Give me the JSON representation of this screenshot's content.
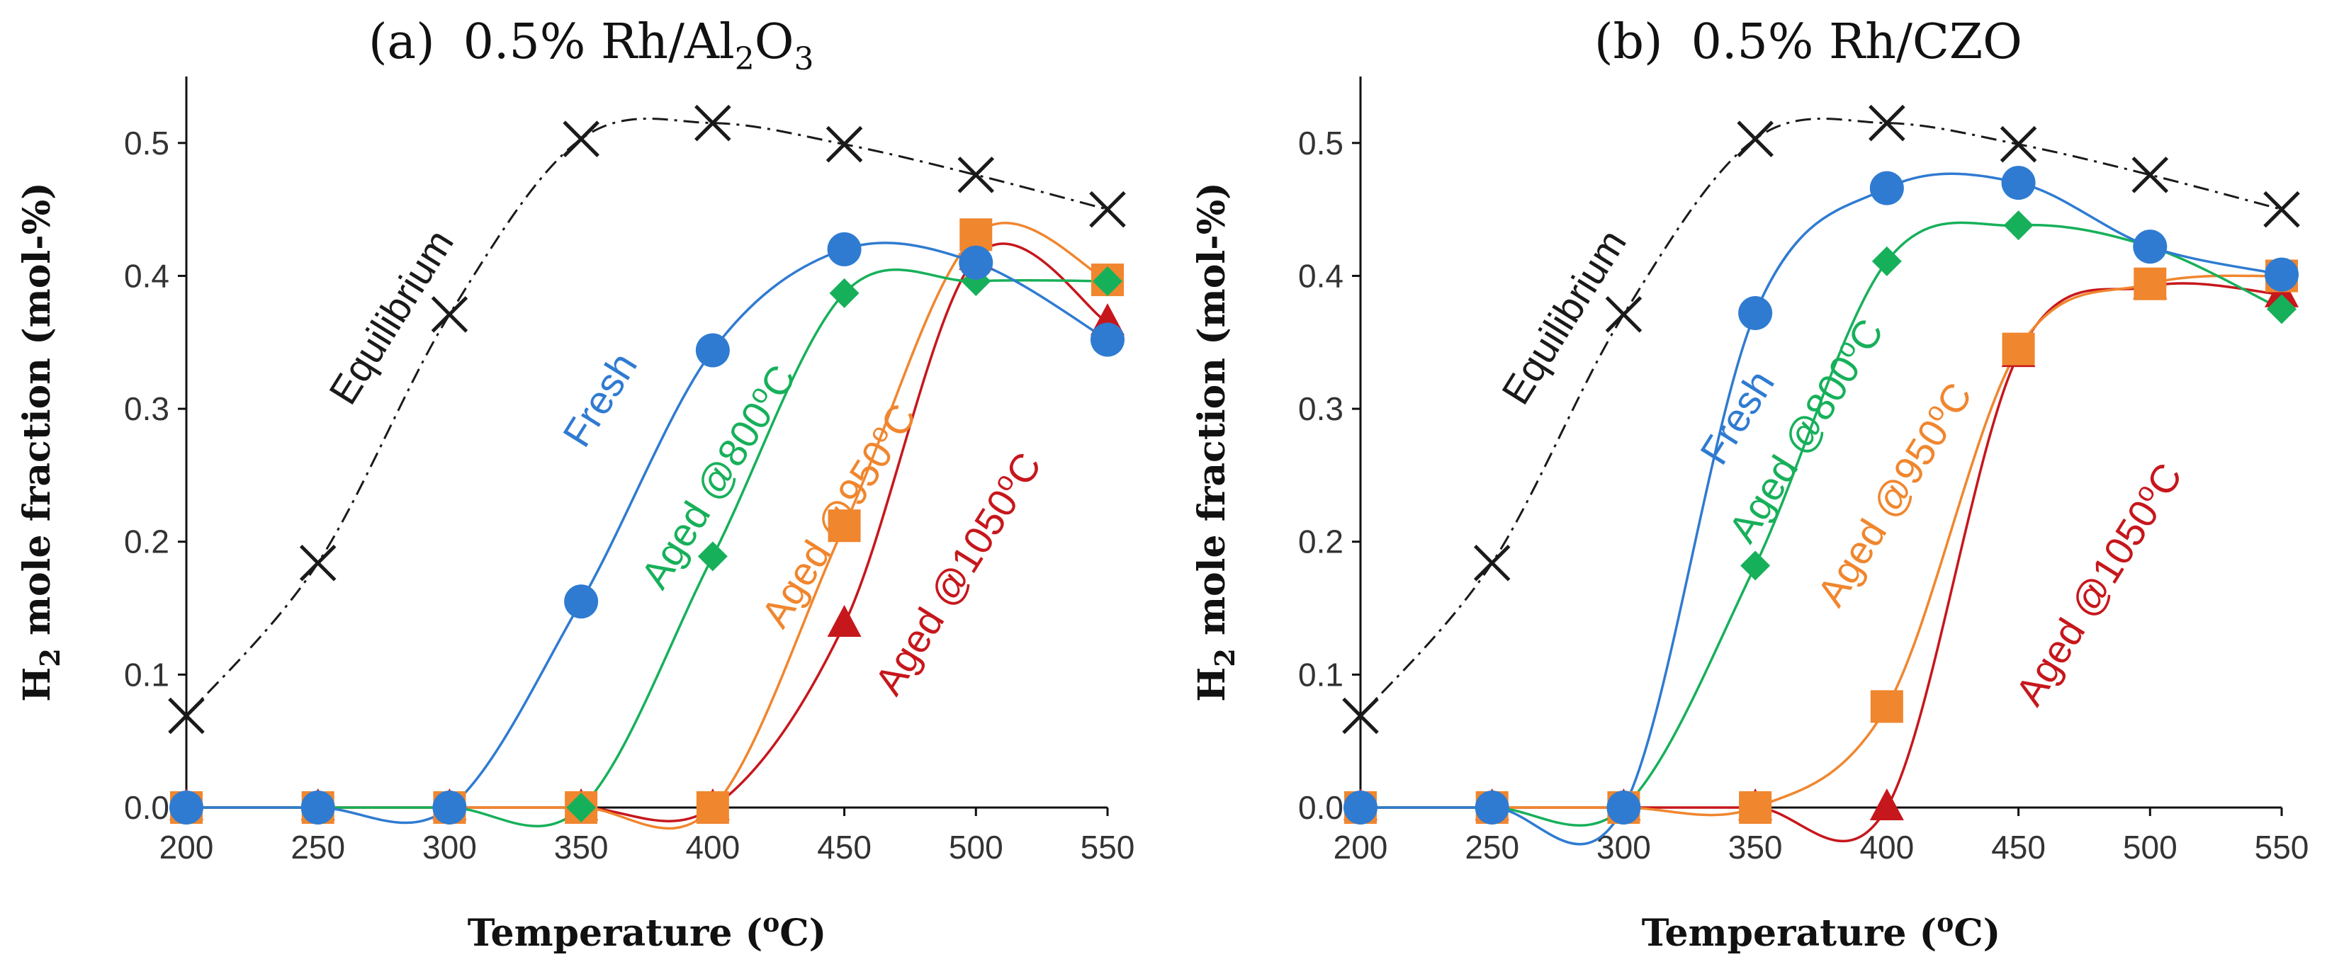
{
  "chart_data": [
    {
      "type": "line",
      "panel": "(a)",
      "title": "0.5% Rh/Al2O3",
      "title_parts": {
        "label": "(a)",
        "main": "0.5% Rh/Al",
        "sub": "2",
        "tail": "O",
        "sub2": "3"
      },
      "xlabel": {
        "main": "Temperature (",
        "sup": "o",
        "tail": "C)"
      },
      "ylabel": {
        "main": "H",
        "sub": "2",
        "tail": " mole fraction (mol-%)"
      },
      "xlim": [
        200,
        550
      ],
      "ylim": [
        0,
        0.55
      ],
      "xticks": [
        "200",
        "250",
        "300",
        "350",
        "400",
        "450",
        "500",
        "550"
      ],
      "yticks": [
        "0.0",
        "0.1",
        "0.2",
        "0.3",
        "0.4",
        "0.5"
      ],
      "x": [
        200,
        250,
        300,
        350,
        400,
        450,
        500,
        550
      ],
      "series": [
        {
          "name": "Equilibrium",
          "color": "#1a1a1a",
          "marker": "x",
          "values": [
            0.069,
            0.184,
            0.371,
            0.503,
            0.515,
            0.499,
            0.476,
            0.45
          ]
        },
        {
          "name": "Fresh",
          "color": "#2f7bd1",
          "marker": "circle",
          "values": [
            0,
            0,
            0,
            0.155,
            0.344,
            0.42,
            0.41,
            0.352
          ]
        },
        {
          "name": "Aged @800oC",
          "color": "#17b05a",
          "marker": "diamond",
          "values": [
            0,
            0,
            0,
            0,
            0.189,
            0.387,
            0.396,
            0.396
          ]
        },
        {
          "name": "Aged @950oC",
          "color": "#f0862e",
          "marker": "square",
          "values": [
            0,
            0,
            0,
            0,
            0,
            0.212,
            0.431,
            0.397
          ]
        },
        {
          "name": "Aged @1050oC",
          "color": "#c6171c",
          "marker": "triangle",
          "values": [
            0,
            0,
            0,
            0,
            0,
            0.138,
            0.414,
            0.365
          ]
        }
      ],
      "annotations": [
        {
          "text": "Equilibrium",
          "series": "Equilibrium"
        },
        {
          "text": "Fresh",
          "series": "Fresh"
        },
        {
          "text": "Aged @800",
          "sup": "o",
          "tail": "C",
          "series": "Aged @800oC"
        },
        {
          "text": "Aged @950",
          "sup": "o",
          "tail": "C",
          "series": "Aged @950oC"
        },
        {
          "text": "Aged @1050",
          "sup": "o",
          "tail": "C",
          "series": "Aged @1050oC"
        }
      ]
    },
    {
      "type": "line",
      "panel": "(b)",
      "title": "0.5% Rh/CZO",
      "title_parts": {
        "label": "(b)",
        "main": "0.5% Rh/CZO",
        "sub": "",
        "tail": "",
        "sub2": ""
      },
      "xlabel": {
        "main": "Temperature (",
        "sup": "o",
        "tail": "C)"
      },
      "ylabel": {
        "main": "H",
        "sub": "2",
        "tail": " mole fraction (mol-%)"
      },
      "xlim": [
        200,
        550
      ],
      "ylim": [
        0,
        0.55
      ],
      "xticks": [
        "200",
        "250",
        "300",
        "350",
        "400",
        "450",
        "500",
        "550"
      ],
      "yticks": [
        "0.0",
        "0.1",
        "0.2",
        "0.3",
        "0.4",
        "0.5"
      ],
      "x": [
        200,
        250,
        300,
        350,
        400,
        450,
        500,
        550
      ],
      "series": [
        {
          "name": "Equilibrium",
          "color": "#1a1a1a",
          "marker": "x",
          "values": [
            0.069,
            0.184,
            0.371,
            0.503,
            0.515,
            0.499,
            0.476,
            0.45
          ]
        },
        {
          "name": "Fresh",
          "color": "#2f7bd1",
          "marker": "circle",
          "values": [
            0,
            0,
            0,
            0.372,
            0.466,
            0.47,
            0.422,
            0.401
          ]
        },
        {
          "name": "Aged @800oC",
          "color": "#17b05a",
          "marker": "diamond",
          "values": [
            0,
            0,
            0,
            0.182,
            0.411,
            0.438,
            0.422,
            0.375
          ]
        },
        {
          "name": "Aged @950oC",
          "color": "#f0862e",
          "marker": "square",
          "values": [
            0,
            0,
            0,
            0,
            0.076,
            0.345,
            0.394,
            0.4
          ]
        },
        {
          "name": "Aged @1050oC",
          "color": "#c6171c",
          "marker": "triangle",
          "values": [
            0,
            0,
            0,
            0,
            0,
            0.341,
            0.392,
            0.386
          ]
        }
      ],
      "annotations": [
        {
          "text": "Equilibrium",
          "series": "Equilibrium"
        },
        {
          "text": "Fresh",
          "series": "Fresh"
        },
        {
          "text": "Aged @800",
          "sup": "o",
          "tail": "C",
          "series": "Aged @800oC"
        },
        {
          "text": "Aged @950",
          "sup": "o",
          "tail": "C",
          "series": "Aged @950oC"
        },
        {
          "text": "Aged @1050",
          "sup": "o",
          "tail": "C",
          "series": "Aged @1050oC"
        }
      ]
    }
  ]
}
